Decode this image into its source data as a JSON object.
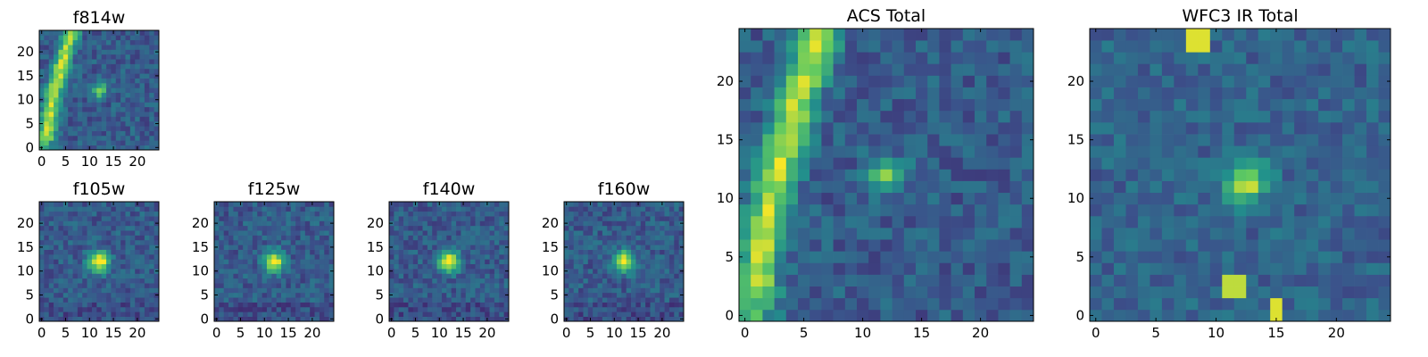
{
  "panels": [
    {
      "id": "f814w",
      "title": "f814w",
      "pattern": "arc_star",
      "seed": 814,
      "xticks": [
        0,
        5,
        10,
        15,
        20
      ],
      "yticks": [
        0,
        5,
        10,
        15,
        20
      ]
    },
    {
      "id": "f105w",
      "title": "f105w",
      "pattern": "star",
      "seed": 105,
      "xticks": [
        0,
        5,
        10,
        15,
        20
      ],
      "yticks": [
        0,
        5,
        10,
        15,
        20
      ]
    },
    {
      "id": "f125w",
      "title": "f125w",
      "pattern": "star",
      "seed": 125,
      "xticks": [
        0,
        5,
        10,
        15,
        20
      ],
      "yticks": [
        0,
        5,
        10,
        15,
        20
      ]
    },
    {
      "id": "f140w",
      "title": "f140w",
      "pattern": "star",
      "seed": 140,
      "xticks": [
        0,
        5,
        10,
        15,
        20
      ],
      "yticks": [
        0,
        5,
        10,
        15,
        20
      ]
    },
    {
      "id": "f160w",
      "title": "f160w",
      "pattern": "star",
      "seed": 160,
      "xticks": [
        0,
        5,
        10,
        15,
        20
      ],
      "yticks": [
        0,
        5,
        10,
        15,
        20
      ]
    },
    {
      "id": "acs-total",
      "title": "ACS Total",
      "pattern": "arc_star",
      "seed": 900,
      "xticks": [
        0,
        5,
        10,
        15,
        20
      ],
      "yticks": [
        0,
        5,
        10,
        15,
        20
      ]
    },
    {
      "id": "wfc3-ir-total",
      "title": "WFC3 IR Total",
      "pattern": "ir_total",
      "seed": 777,
      "xticks": [
        0,
        5,
        10,
        15,
        20
      ],
      "yticks": [
        0,
        5,
        10,
        15,
        20
      ]
    }
  ],
  "chart_data": {
    "type": "heatmap",
    "grid_size": [
      25,
      25
    ],
    "xlim": [
      0,
      24
    ],
    "ylim": [
      0,
      24
    ],
    "colormap": "viridis",
    "colormap_stops": [
      "#440154",
      "#3b528b",
      "#21918c",
      "#5ec962",
      "#fde725"
    ],
    "titles": [
      "f814w",
      "f105w",
      "f125w",
      "f140w",
      "f160w",
      "ACS Total",
      "WFC3 IR Total"
    ],
    "source_center": [
      12,
      12
    ]
  }
}
